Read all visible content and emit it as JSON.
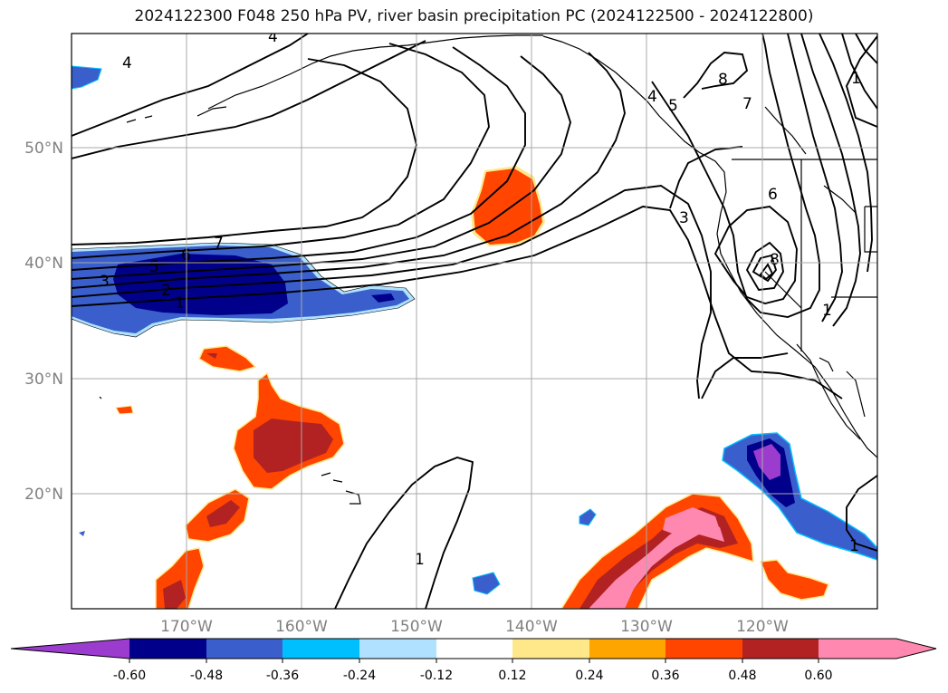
{
  "title": "2024122300 F048 250 hPa PV, river basin precipitation PC (2024122500 - 2024122800)",
  "map": {
    "lat_labels": [
      "50°N",
      "40°N",
      "30°N",
      "20°N"
    ],
    "lon_labels": [
      "170°W",
      "160°W",
      "150°W",
      "140°W",
      "130°W",
      "120°W"
    ],
    "axis_label_color": "#808080",
    "gridlines": true,
    "contour_color": "#000000",
    "contour_labels": [
      "4",
      "4",
      "7",
      "6",
      "5",
      "3",
      "2",
      "1",
      "4",
      "5",
      "8",
      "7",
      "1",
      "6",
      "3",
      "8",
      "1",
      "1",
      "1"
    ],
    "icons": [
      "coastline",
      "country-borders",
      "state-borders"
    ]
  },
  "colorbar": {
    "tick_labels": [
      "-0.60",
      "-0.48",
      "-0.36",
      "-0.24",
      "-0.12",
      "0.12",
      "0.24",
      "0.36",
      "0.48",
      "0.60"
    ],
    "colors": [
      "#9b3ccf",
      "#00008b",
      "#3a5fcd",
      "#00bfff",
      "#b0e2ff",
      "#ffffff",
      "#ffe88a",
      "#ffa500",
      "#ff4500",
      "#b22222",
      "#ff88b0"
    ]
  }
}
